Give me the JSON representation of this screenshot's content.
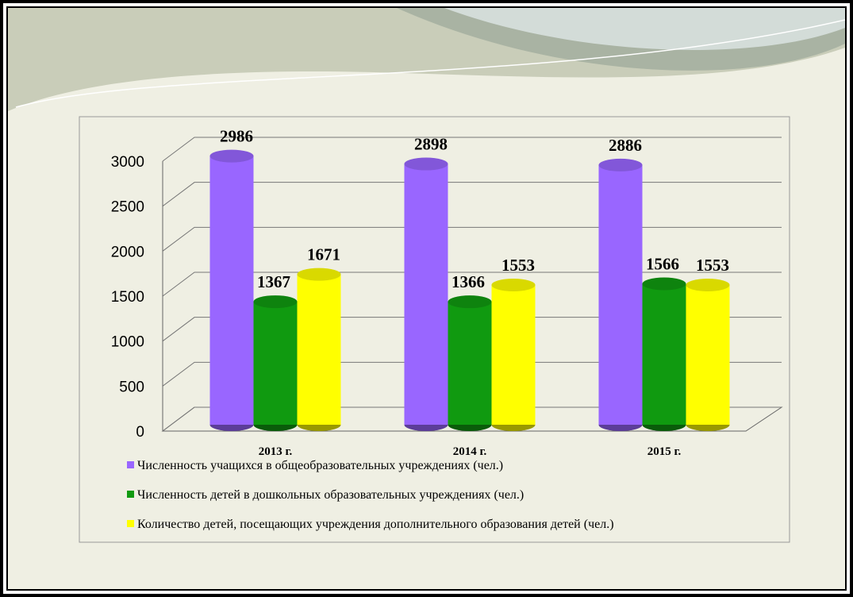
{
  "chart_data": {
    "type": "bar",
    "categories": [
      "2013 г.",
      "2014 г.",
      "2015 г."
    ],
    "series": [
      {
        "name": "Численность учащихся в общеобразовательных учреждениях (чел.)",
        "color": "#9966ff",
        "values": [
          2986,
          2898,
          2886
        ]
      },
      {
        "name": "Численность детей в дошкольных образовательных учреждениях (чел.)",
        "color": "#109a10",
        "values": [
          1367,
          1366,
          1566
        ]
      },
      {
        "name": "Количество детей, посещающих учреждения дополнительного образования детей (чел.)",
        "color": "#ffff00",
        "values": [
          1671,
          1553,
          1553
        ]
      }
    ],
    "ylim": [
      0,
      3000
    ],
    "yticks": [
      0,
      500,
      1000,
      1500,
      2000,
      2500,
      3000
    ],
    "grid": true
  }
}
